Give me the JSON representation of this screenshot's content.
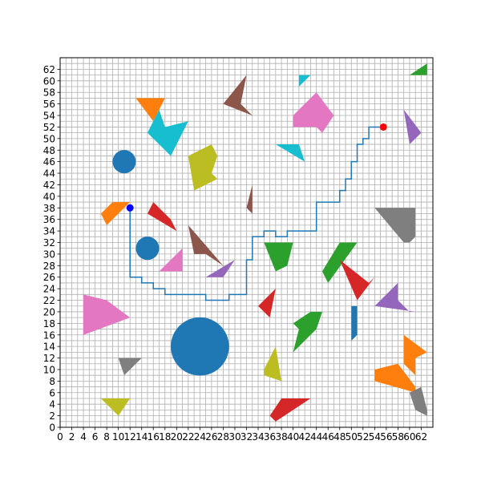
{
  "chart_data": {
    "type": "scatter",
    "title": "",
    "xlabel": "",
    "ylabel": "",
    "xlim": [
      0,
      64
    ],
    "ylim": [
      0,
      64
    ],
    "grid": true,
    "x_ticks": [
      "0",
      "2",
      "4",
      "6",
      "8",
      "10",
      "12",
      "14",
      "16",
      "18",
      "20",
      "22",
      "24",
      "26",
      "28",
      "30",
      "32",
      "34",
      "36",
      "38",
      "40",
      "42",
      "44",
      "46",
      "48",
      "50",
      "52",
      "54",
      "56",
      "58",
      "60",
      "62"
    ],
    "y_ticks": [
      "0",
      "2",
      "4",
      "6",
      "8",
      "10",
      "12",
      "14",
      "16",
      "18",
      "20",
      "22",
      "24",
      "26",
      "28",
      "30",
      "32",
      "34",
      "36",
      "38",
      "40",
      "42",
      "44",
      "46",
      "48",
      "50",
      "52",
      "54",
      "56",
      "58",
      "60",
      "62"
    ],
    "start_point": {
      "x": 12,
      "y": 38,
      "color": "#0000ff"
    },
    "goal_point": {
      "x": 55.5,
      "y": 52,
      "color": "#ff0000"
    },
    "path": {
      "color": "#1f77b4",
      "points": [
        [
          12,
          38
        ],
        [
          12,
          26
        ],
        [
          14,
          26
        ],
        [
          14,
          25
        ],
        [
          16,
          25
        ],
        [
          16,
          24
        ],
        [
          18,
          24
        ],
        [
          18,
          23
        ],
        [
          25,
          23
        ],
        [
          25,
          22
        ],
        [
          29,
          22
        ],
        [
          29,
          23
        ],
        [
          32,
          23
        ],
        [
          32,
          29
        ],
        [
          33,
          29
        ],
        [
          33,
          33
        ],
        [
          35,
          33
        ],
        [
          35,
          34
        ],
        [
          37,
          34
        ],
        [
          37,
          33
        ],
        [
          39,
          33
        ],
        [
          39,
          34
        ],
        [
          44,
          34
        ],
        [
          44,
          39
        ],
        [
          48,
          39
        ],
        [
          48,
          41
        ],
        [
          49,
          41
        ],
        [
          49,
          43
        ],
        [
          50,
          43
        ],
        [
          50,
          46
        ],
        [
          51,
          46
        ],
        [
          51,
          49
        ],
        [
          52,
          49
        ],
        [
          52,
          50
        ],
        [
          53,
          50
        ],
        [
          53,
          52
        ],
        [
          55.5,
          52
        ]
      ]
    },
    "circles": [
      {
        "cx": 24,
        "cy": 14,
        "r": 5,
        "color": "#1f77b4"
      },
      {
        "cx": 11,
        "cy": 46,
        "r": 2,
        "color": "#1f77b4"
      },
      {
        "cx": 15,
        "cy": 31,
        "r": 2,
        "color": "#1f77b4"
      }
    ],
    "polygons": [
      {
        "color": "#ff7f0e",
        "points": [
          [
            13,
            57
          ],
          [
            18,
            57
          ],
          [
            16,
            53
          ]
        ]
      },
      {
        "color": "#17becf",
        "points": [
          [
            15,
            51
          ],
          [
            17,
            55
          ],
          [
            18,
            52
          ],
          [
            22,
            53
          ],
          [
            19,
            47
          ]
        ]
      },
      {
        "color": "#8c564b",
        "points": [
          [
            28,
            56
          ],
          [
            32,
            61
          ],
          [
            31,
            56
          ],
          [
            33,
            54
          ]
        ]
      },
      {
        "color": "#17becf",
        "points": [
          [
            41,
            61
          ],
          [
            43,
            61
          ],
          [
            41,
            59
          ]
        ]
      },
      {
        "color": "#e377c2",
        "points": [
          [
            40,
            54
          ],
          [
            44,
            58
          ],
          [
            47,
            54
          ],
          [
            45,
            51
          ],
          [
            44,
            52
          ],
          [
            40,
            52
          ]
        ]
      },
      {
        "color": "#2ca02c",
        "points": [
          [
            60,
            61
          ],
          [
            63,
            63
          ],
          [
            63,
            61
          ]
        ]
      },
      {
        "color": "#9467bd",
        "points": [
          [
            59,
            55
          ],
          [
            62,
            51
          ],
          [
            60,
            49
          ]
        ]
      },
      {
        "color": "#bcbd22",
        "points": [
          [
            22,
            47
          ],
          [
            26,
            49
          ],
          [
            27,
            47
          ],
          [
            26,
            44
          ],
          [
            27,
            43
          ],
          [
            23,
            41
          ]
        ]
      },
      {
        "color": "#17becf",
        "points": [
          [
            37,
            49
          ],
          [
            41,
            49
          ],
          [
            42,
            46
          ]
        ]
      },
      {
        "color": "#8c564b",
        "points": [
          [
            32,
            38
          ],
          [
            33,
            42
          ],
          [
            33,
            37
          ]
        ]
      },
      {
        "color": "#ff7f0e",
        "points": [
          [
            7,
            37
          ],
          [
            9,
            39
          ],
          [
            12,
            39
          ],
          [
            10,
            37
          ],
          [
            8,
            35
          ]
        ]
      },
      {
        "color": "#d62728",
        "points": [
          [
            15,
            37
          ],
          [
            16,
            39
          ],
          [
            19,
            36
          ],
          [
            20,
            34
          ]
        ]
      },
      {
        "color": "#7f7f7f",
        "points": [
          [
            54,
            38
          ],
          [
            61,
            38
          ],
          [
            61,
            33
          ],
          [
            60,
            32
          ],
          [
            59,
            32
          ]
        ]
      },
      {
        "color": "#8c564b",
        "points": [
          [
            22,
            35
          ],
          [
            23,
            30
          ],
          [
            25,
            30
          ],
          [
            28,
            28
          ]
        ]
      },
      {
        "color": "#e377c2",
        "points": [
          [
            17,
            27
          ],
          [
            21,
            31
          ],
          [
            21,
            27
          ]
        ]
      },
      {
        "color": "#9467bd",
        "points": [
          [
            25,
            26
          ],
          [
            30,
            29
          ],
          [
            28,
            26
          ]
        ]
      },
      {
        "color": "#2ca02c",
        "points": [
          [
            35,
            32
          ],
          [
            40,
            32
          ],
          [
            39,
            28
          ],
          [
            37,
            27
          ]
        ]
      },
      {
        "color": "#2ca02c",
        "points": [
          [
            45,
            27
          ],
          [
            46,
            25
          ],
          [
            51,
            32
          ],
          [
            48,
            32
          ]
        ]
      },
      {
        "color": "#d62728",
        "points": [
          [
            48,
            29
          ],
          [
            51,
            22
          ],
          [
            54,
            26
          ],
          [
            55,
            27
          ],
          [
            53,
            25
          ]
        ]
      },
      {
        "color": "#d62728",
        "points": [
          [
            34,
            21
          ],
          [
            36,
            19
          ],
          [
            37,
            24
          ]
        ]
      },
      {
        "color": "#e377c2",
        "points": [
          [
            4,
            23
          ],
          [
            8,
            22
          ],
          [
            12,
            19
          ],
          [
            4,
            16
          ],
          [
            4,
            18
          ]
        ]
      },
      {
        "color": "#9467bd",
        "points": [
          [
            54,
            21
          ],
          [
            58,
            25
          ],
          [
            58,
            22
          ],
          [
            60,
            20
          ],
          [
            61,
            20
          ]
        ]
      },
      {
        "color": "#1f77b4",
        "points": [
          [
            50,
            21
          ],
          [
            51,
            21
          ],
          [
            51,
            16
          ],
          [
            50,
            15
          ]
        ]
      },
      {
        "color": "#2ca02c",
        "points": [
          [
            40,
            18
          ],
          [
            41,
            17
          ],
          [
            40,
            13
          ],
          [
            44,
            17
          ],
          [
            45,
            20
          ],
          [
            43,
            20
          ]
        ]
      },
      {
        "color": "#bcbd22",
        "points": [
          [
            35,
            10
          ],
          [
            37,
            14
          ],
          [
            38,
            8
          ],
          [
            35,
            9
          ]
        ]
      },
      {
        "color": "#7f7f7f",
        "points": [
          [
            10,
            12
          ],
          [
            11,
            9
          ],
          [
            14,
            12
          ]
        ]
      },
      {
        "color": "#ff7f0e",
        "points": [
          [
            59,
            16
          ],
          [
            59,
            11
          ],
          [
            61,
            9
          ],
          [
            61,
            12
          ],
          [
            63,
            13
          ]
        ]
      },
      {
        "color": "#ff7f0e",
        "points": [
          [
            54,
            10
          ],
          [
            58,
            11
          ],
          [
            61,
            7
          ],
          [
            61,
            6
          ],
          [
            54,
            8
          ]
        ]
      },
      {
        "color": "#bcbd22",
        "points": [
          [
            7,
            5
          ],
          [
            10,
            2
          ],
          [
            12,
            5
          ],
          [
            9,
            5
          ]
        ]
      },
      {
        "color": "#d62728",
        "points": [
          [
            36,
            2
          ],
          [
            37,
            1
          ],
          [
            43,
            5
          ],
          [
            38,
            5
          ]
        ]
      },
      {
        "color": "#7f7f7f",
        "points": [
          [
            60,
            6
          ],
          [
            62,
            7
          ],
          [
            63,
            3
          ],
          [
            63,
            2
          ],
          [
            61,
            3
          ]
        ]
      }
    ]
  }
}
